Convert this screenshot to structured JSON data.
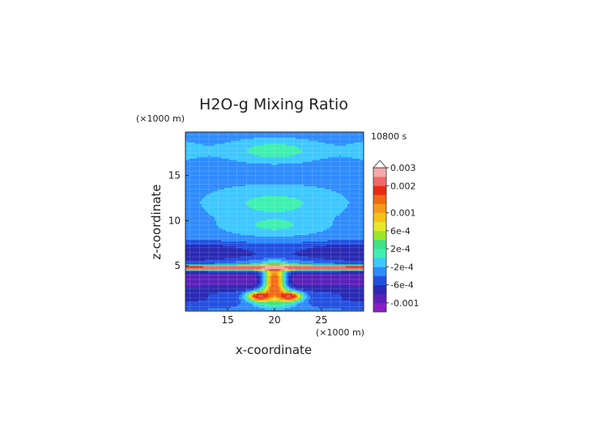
{
  "chart_data": {
    "type": "heatmap",
    "title": "H2O-g Mixing Ratio",
    "time_label": "10800 s",
    "xlabel": "x-coordinate",
    "ylabel": "z-coordinate",
    "x_unit": "(×1000 m)",
    "y_unit": "(×1000 m)",
    "xlim": [
      10.5,
      29.5
    ],
    "ylim": [
      0,
      19.8
    ],
    "x_ticks": [
      15,
      20,
      25
    ],
    "y_ticks": [
      5,
      10,
      15
    ],
    "colorbar": {
      "labels": [
        "0.003",
        "0.002",
        "0.001",
        "6e-4",
        "2e-4",
        "-2e-4",
        "-6e-4",
        "-0.001"
      ],
      "label_values": [
        0.003,
        0.002,
        0.001,
        0.0006,
        0.0002,
        -0.0002,
        -0.0006,
        -0.001
      ],
      "levels": [
        -0.0012,
        -0.001,
        -0.0008,
        -0.0006,
        -0.0004,
        -0.0002,
        0,
        0.0002,
        0.0004,
        0.0006,
        0.0008,
        0.001,
        0.0012,
        0.0015,
        0.002,
        0.0025,
        0.003
      ],
      "colors": [
        "#8a1fc6",
        "#5a22b8",
        "#2a2ab4",
        "#2450e0",
        "#2f8cff",
        "#3ec8ff",
        "#3ef0b0",
        "#3ee08a",
        "#9ae62a",
        "#e6e62a",
        "#f5c21a",
        "#f59a1a",
        "#f06a14",
        "#e82a14",
        "#f06a6a",
        "#f5aaaa"
      ],
      "extend": "max"
    }
  }
}
